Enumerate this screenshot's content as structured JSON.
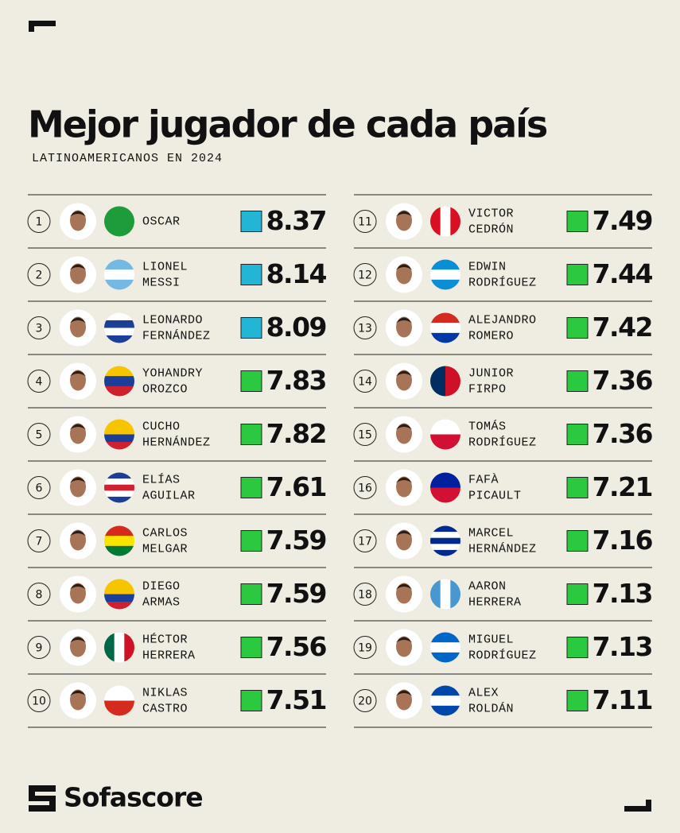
{
  "header": {
    "title": "Mejor jugador de cada país",
    "subtitle": "LATINOAMERICANOS EN 2024"
  },
  "players": [
    {
      "rank": 1,
      "name": [
        "OSCAR"
      ],
      "rating": 8.37,
      "color": "#22b5d6"
    },
    {
      "rank": 2,
      "name": [
        "LIONEL",
        "MESSI"
      ],
      "rating": 8.14,
      "color": "#22b5d6"
    },
    {
      "rank": 3,
      "name": [
        "LEONARDO",
        "FERNÁNDEZ"
      ],
      "rating": 8.09,
      "color": "#22b5d6"
    },
    {
      "rank": 4,
      "name": [
        "YOHANDRY",
        "OROZCO"
      ],
      "rating": 7.83,
      "color": "#2bc940"
    },
    {
      "rank": 5,
      "name": [
        "CUCHO",
        "HERNÁNDEZ"
      ],
      "rating": 7.82,
      "color": "#2bc940"
    },
    {
      "rank": 6,
      "name": [
        "ELÍAS",
        "AGUILAR"
      ],
      "rating": 7.61,
      "color": "#2bc940"
    },
    {
      "rank": 7,
      "name": [
        "CARLOS",
        "MELGAR"
      ],
      "rating": 7.59,
      "color": "#2bc940"
    },
    {
      "rank": 8,
      "name": [
        "DIEGO",
        "ARMAS"
      ],
      "rating": 7.59,
      "color": "#2bc940"
    },
    {
      "rank": 9,
      "name": [
        "HÉCTOR",
        "HERRERA"
      ],
      "rating": 7.56,
      "color": "#2bc940"
    },
    {
      "rank": 10,
      "name": [
        "NIKLAS",
        "CASTRO"
      ],
      "rating": 7.51,
      "color": "#2bc940"
    },
    {
      "rank": 11,
      "name": [
        "VICTOR",
        "CEDRÓN"
      ],
      "rating": 7.49,
      "color": "#2bc940"
    },
    {
      "rank": 12,
      "name": [
        "EDWIN",
        "RODRÍGUEZ"
      ],
      "rating": 7.44,
      "color": "#2bc940"
    },
    {
      "rank": 13,
      "name": [
        "ALEJANDRO",
        "ROMERO"
      ],
      "rating": 7.42,
      "color": "#2bc940"
    },
    {
      "rank": 14,
      "name": [
        "JUNIOR",
        "FIRPO"
      ],
      "rating": 7.36,
      "color": "#2bc940"
    },
    {
      "rank": 15,
      "name": [
        "TOMÁS",
        "RODRÍGUEZ"
      ],
      "rating": 7.36,
      "color": "#2bc940"
    },
    {
      "rank": 16,
      "name": [
        "FAFÀ",
        "PICAULT"
      ],
      "rating": 7.21,
      "color": "#2bc940"
    },
    {
      "rank": 17,
      "name": [
        "MARCEL",
        "HERNÁNDEZ"
      ],
      "rating": 7.16,
      "color": "#2bc940"
    },
    {
      "rank": 18,
      "name": [
        "AARON",
        "HERRERA"
      ],
      "rating": 7.13,
      "color": "#2bc940"
    },
    {
      "rank": 19,
      "name": [
        "MIGUEL",
        "RODRÍGUEZ"
      ],
      "rating": 7.13,
      "color": "#2bc940"
    },
    {
      "rank": 20,
      "name": [
        "ALEX",
        "ROLDÁN"
      ],
      "rating": 7.11,
      "color": "#2bc940"
    }
  ],
  "footer": {
    "brand": "Sofascore"
  }
}
